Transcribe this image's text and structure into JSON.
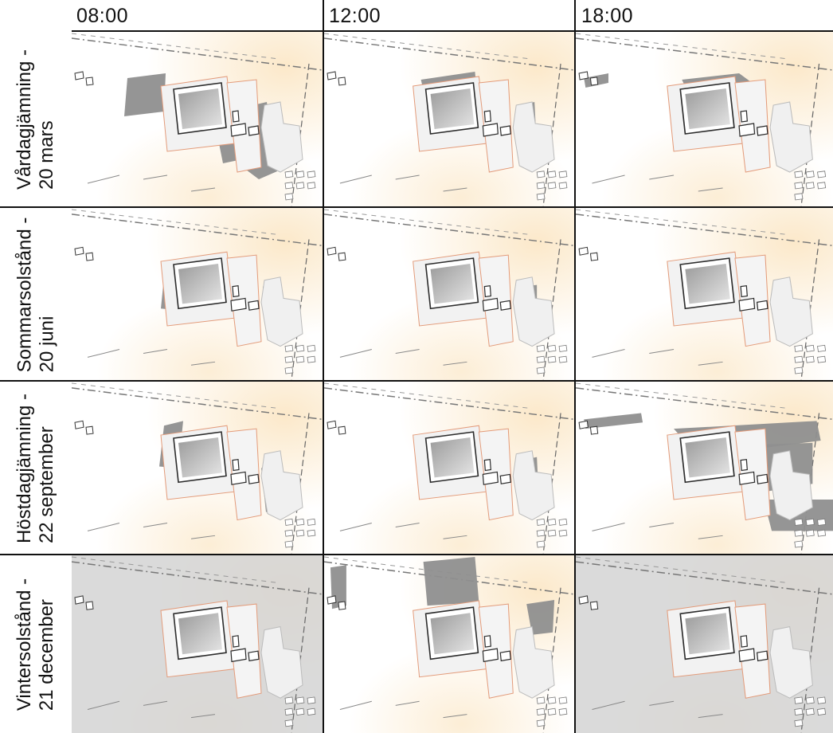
{
  "columns": [
    "08:00",
    "12:00",
    "18:00"
  ],
  "rows": [
    {
      "line1": "Vårdagjämning -",
      "line2": "20 mars"
    },
    {
      "line1": "Sommarsolstånd -",
      "line2": "20 juni"
    },
    {
      "line1": "Höstdagjämning -",
      "line2": "22 september"
    },
    {
      "line1": "Vintersolstånd -",
      "line2": "21 december"
    }
  ],
  "colors": {
    "shadow": "#8f8f8f",
    "winter_overlay": "#d3d3d3",
    "plot_outline": "#e39b7a",
    "building": "#2c2c2c",
    "sun_glow": "#fbe6c4"
  }
}
